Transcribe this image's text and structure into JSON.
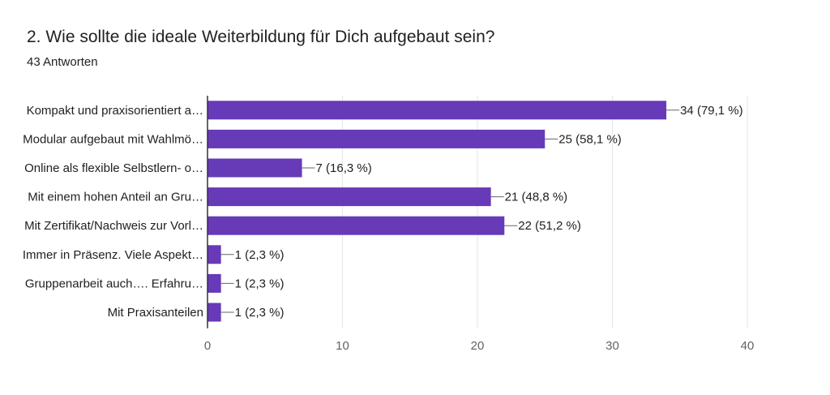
{
  "header": {
    "title": "2. Wie sollte die ideale Weiterbildung für Dich aufgebaut sein?",
    "subtitle": "43 Antworten"
  },
  "colors": {
    "bar": "#673ab7",
    "grid": "#e6e6e6",
    "axis": "#333333",
    "leader": "#666666"
  },
  "chart_data": {
    "type": "bar",
    "orientation": "horizontal",
    "title": "2. Wie sollte die ideale Weiterbildung für Dich aufgebaut sein?",
    "subtitle": "43 Antworten",
    "categories": [
      "Kompakt und praxisorientiert a…",
      "Modular aufgebaut mit Wahlmö…",
      "Online als flexible Selbstlern- o…",
      "Mit einem hohen Anteil an Gru…",
      "Mit Zertifikat/Nachweis zur Vorl…",
      "Immer in Präsenz. Viele Aspekt…",
      "Gruppenarbeit auch…. Erfahru…",
      "Mit Praxisanteilen"
    ],
    "values": [
      34,
      25,
      7,
      21,
      22,
      1,
      1,
      1
    ],
    "data_labels": [
      "34 (79,1 %)",
      "25 (58,1 %)",
      "7 (16,3 %)",
      "21 (48,8 %)",
      "22 (51,2 %)",
      "1 (2,3 %)",
      "1 (2,3 %)",
      "1 (2,3 %)"
    ],
    "xlim": [
      0,
      40
    ],
    "xticks": [
      "0",
      "10",
      "20",
      "30",
      "40"
    ],
    "grid": true,
    "legend": "none"
  }
}
